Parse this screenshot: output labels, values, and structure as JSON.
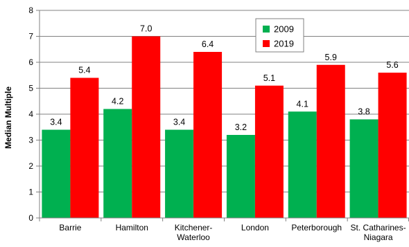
{
  "chart_data": {
    "type": "bar",
    "categories": [
      [
        "Barrie"
      ],
      [
        "Hamilton"
      ],
      [
        "Kitchener-",
        "Waterloo"
      ],
      [
        "London"
      ],
      [
        "Peterborough"
      ],
      [
        "St. Catharines-",
        "Niagara"
      ]
    ],
    "series": [
      {
        "name": "2009",
        "color": "#00b050",
        "values": [
          3.4,
          4.2,
          3.4,
          3.2,
          4.1,
          3.8
        ],
        "labels": [
          "3.4",
          "4.2",
          "3.4",
          "3.2",
          "4.1",
          "3.8"
        ]
      },
      {
        "name": "2019",
        "color": "#ff0000",
        "values": [
          5.4,
          7.0,
          6.4,
          5.1,
          5.9,
          5.6
        ],
        "labels": [
          "5.4",
          "7.0",
          "6.4",
          "5.1",
          "5.9",
          "5.6"
        ]
      }
    ],
    "ylabel": "Median Multiple",
    "xlabel": "",
    "ylim": [
      0,
      8
    ],
    "yticks": [
      0,
      1,
      2,
      3,
      4,
      5,
      6,
      7,
      8
    ],
    "grid": true,
    "legend_position": "top-center"
  }
}
